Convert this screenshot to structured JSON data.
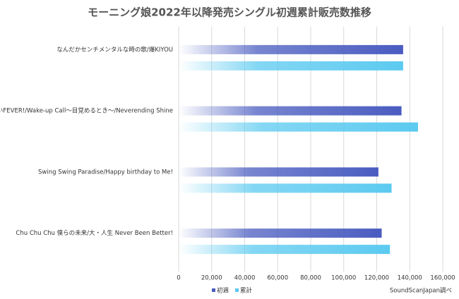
{
  "chart_data": {
    "type": "hbar",
    "title": "モーニング娘2022年以降発売シングル初週累計販売数推移",
    "categories": [
      "なんだかセンチメンタルな時の歌/爆KIYOU",
      "すっごいFEVER!/Wake-up Call〜目覚めるとき〜/Neverending Shine",
      "Swing Swing Paradise/Happy birthday to Me!",
      "Chu Chu Chu 僕らの未来/大・人生 Never Been Better!"
    ],
    "series": [
      {
        "name": "初週",
        "color": "#4a5cc0",
        "values": [
          136000,
          135000,
          121000,
          123000
        ]
      },
      {
        "name": "累計",
        "color": "#5ccaf0",
        "values": [
          136000,
          145000,
          129000,
          128000
        ]
      }
    ],
    "xlim": [
      0,
      160000
    ],
    "xticks": [
      0,
      {
        "value": 20000,
        "label": "20,000"
      },
      {
        "value": 40000,
        "label": "40,000"
      },
      {
        "value": 60000,
        "label": "60,000"
      },
      {
        "value": 80000,
        "label": "80,000"
      },
      {
        "value": 100000,
        "label": "100,000"
      },
      {
        "value": 120000,
        "label": "120,000"
      },
      {
        "value": 140000,
        "label": "140,000"
      },
      {
        "value": 160000,
        "label": "160,000"
      }
    ],
    "grid": true,
    "legend": "bottom",
    "annotation": "SoundScanJapan調べ"
  }
}
